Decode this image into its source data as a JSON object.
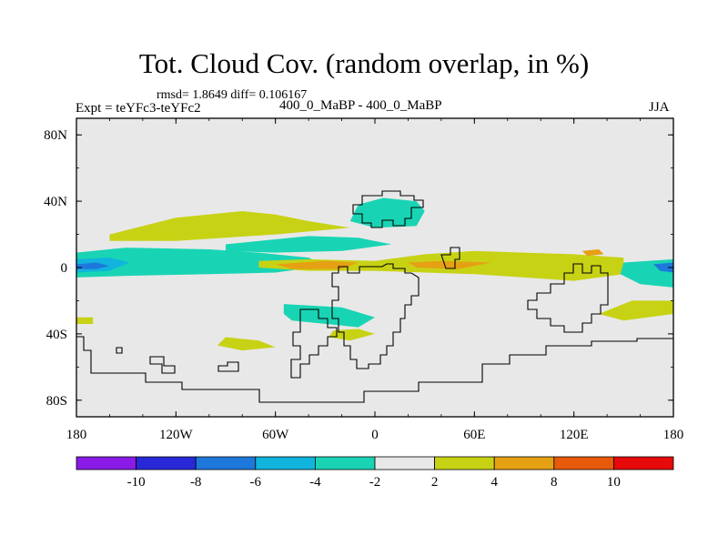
{
  "title": "Tot. Cloud Cov. (random overlap, in %)",
  "stats": "rmsd= 1.8649 diff= 0.106167",
  "expt": "Expt = teYFc3-teYFc2",
  "center_label": "400_0_MaBP - 400_0_MaBP",
  "season": "JJA",
  "axes": {
    "x_ticks": [
      {
        "value": -180,
        "label": "180"
      },
      {
        "value": -120,
        "label": "120W"
      },
      {
        "value": -60,
        "label": "60W"
      },
      {
        "value": 0,
        "label": "0"
      },
      {
        "value": 60,
        "label": "60E"
      },
      {
        "value": 120,
        "label": "120E"
      },
      {
        "value": 180,
        "label": "180"
      }
    ],
    "y_ticks": [
      {
        "value": 80,
        "label": "80N"
      },
      {
        "value": 40,
        "label": "40N"
      },
      {
        "value": 0,
        "label": "0"
      },
      {
        "value": -40,
        "label": "40S"
      },
      {
        "value": -80,
        "label": "80S"
      }
    ],
    "xlim": [
      -180,
      180
    ],
    "ylim": [
      -90,
      90
    ]
  },
  "colorbar": {
    "colors": [
      "#8a1ae6",
      "#2828d8",
      "#1e78dc",
      "#10b4dc",
      "#19d4b4",
      "#e8e8e8",
      "#c8d214",
      "#e6a014",
      "#e65a0a",
      "#e60a0a"
    ],
    "labels": [
      "-10",
      "-8",
      "-6",
      "-4",
      "-2",
      "2",
      "4",
      "8",
      "10"
    ]
  },
  "chart_data": {
    "type": "heatmap",
    "title": "Tot. Cloud Cov. (random overlap, in %)",
    "levels": [
      -10,
      -8,
      -6,
      -4,
      -2,
      2,
      4,
      8,
      10
    ],
    "background": "#e8e8e8",
    "regions": [
      {
        "name": "",
        "color": "#19d4b4",
        "points": [
          [
            -180,
            9
          ],
          [
            -150,
            12
          ],
          [
            -100,
            11
          ],
          [
            -70,
            9
          ],
          [
            -40,
            6
          ],
          [
            -30,
            1
          ],
          [
            -60,
            -3
          ],
          [
            -100,
            -4
          ],
          [
            -150,
            -5
          ],
          [
            -180,
            -6
          ]
        ]
      },
      {
        "name": "",
        "color": "#10b4dc",
        "points": [
          [
            -180,
            5
          ],
          [
            -160,
            6
          ],
          [
            -148,
            3
          ],
          [
            -160,
            -2
          ],
          [
            -180,
            -3
          ]
        ]
      },
      {
        "name": "",
        "color": "#1e78dc",
        "points": [
          [
            -180,
            2
          ],
          [
            -168,
            3
          ],
          [
            -160,
            1
          ],
          [
            -168,
            -1
          ],
          [
            -180,
            -1
          ]
        ]
      },
      {
        "name": "",
        "color": "#c8d214",
        "points": [
          [
            -160,
            20
          ],
          [
            -120,
            30
          ],
          [
            -80,
            34
          ],
          [
            -60,
            32
          ],
          [
            -40,
            28
          ],
          [
            -15,
            24
          ],
          [
            -60,
            20
          ],
          [
            -120,
            16
          ],
          [
            -160,
            16
          ]
        ]
      },
      {
        "name": "",
        "color": "#19d4b4",
        "points": [
          [
            -90,
            14
          ],
          [
            -60,
            17
          ],
          [
            -40,
            19
          ],
          [
            -10,
            18
          ],
          [
            10,
            14
          ],
          [
            -20,
            10
          ],
          [
            -60,
            9
          ],
          [
            -90,
            10
          ]
        ]
      },
      {
        "name": "",
        "color": "#19d4b4",
        "points": [
          [
            -10,
            38
          ],
          [
            5,
            42
          ],
          [
            25,
            40
          ],
          [
            30,
            34
          ],
          [
            25,
            25
          ],
          [
            0,
            24
          ],
          [
            -15,
            28
          ]
        ]
      },
      {
        "name": "",
        "color": "#c8d214",
        "points": [
          [
            -70,
            4
          ],
          [
            -40,
            5
          ],
          [
            0,
            4
          ],
          [
            30,
            8
          ],
          [
            60,
            10
          ],
          [
            90,
            9
          ],
          [
            120,
            8
          ],
          [
            150,
            6
          ],
          [
            150,
            -4
          ],
          [
            120,
            -8
          ],
          [
            90,
            -6
          ],
          [
            60,
            -4
          ],
          [
            30,
            -3
          ],
          [
            0,
            -2
          ],
          [
            -40,
            -2
          ],
          [
            -70,
            0
          ]
        ]
      },
      {
        "name": "",
        "color": "#e6a014",
        "points": [
          [
            -60,
            2
          ],
          [
            -30,
            4
          ],
          [
            -10,
            3
          ],
          [
            -20,
            -1
          ],
          [
            -50,
            -1
          ]
        ]
      },
      {
        "name": "",
        "color": "#e6a014",
        "points": [
          [
            20,
            3
          ],
          [
            40,
            4
          ],
          [
            70,
            3
          ],
          [
            50,
            -1
          ],
          [
            25,
            0
          ]
        ]
      },
      {
        "name": "",
        "color": "#e6a014",
        "points": [
          [
            125,
            10
          ],
          [
            135,
            11
          ],
          [
            138,
            8
          ],
          [
            128,
            7
          ]
        ]
      },
      {
        "name": "",
        "color": "#c8d214",
        "points": [
          [
            155,
            -20
          ],
          [
            180,
            -20
          ],
          [
            180,
            -28
          ],
          [
            150,
            -32
          ],
          [
            135,
            -28
          ]
        ]
      },
      {
        "name": "",
        "color": "#c8d214",
        "points": [
          [
            -180,
            -30
          ],
          [
            -170,
            -30
          ],
          [
            -170,
            -34
          ],
          [
            -180,
            -34
          ]
        ]
      },
      {
        "name": "",
        "color": "#19d4b4",
        "points": [
          [
            -55,
            -22
          ],
          [
            -20,
            -24
          ],
          [
            0,
            -30
          ],
          [
            -10,
            -36
          ],
          [
            -50,
            -32
          ],
          [
            -55,
            -28
          ]
        ]
      },
      {
        "name": "",
        "color": "#19d4b4",
        "points": [
          [
            150,
            3
          ],
          [
            180,
            5
          ],
          [
            180,
            -12
          ],
          [
            160,
            -10
          ],
          [
            148,
            -4
          ]
        ]
      },
      {
        "name": "",
        "color": "#1e78dc",
        "points": [
          [
            168,
            2
          ],
          [
            180,
            3
          ],
          [
            180,
            -3
          ],
          [
            172,
            -2
          ]
        ]
      },
      {
        "name": "",
        "color": "#c8d214",
        "points": [
          [
            -90,
            -42
          ],
          [
            -70,
            -44
          ],
          [
            -60,
            -48
          ],
          [
            -80,
            -50
          ],
          [
            -95,
            -47
          ]
        ]
      },
      {
        "name": "",
        "color": "#c8d214",
        "points": [
          [
            -25,
            -38
          ],
          [
            -10,
            -37
          ],
          [
            0,
            -40
          ],
          [
            -15,
            -44
          ],
          [
            -28,
            -42
          ]
        ]
      }
    ]
  }
}
